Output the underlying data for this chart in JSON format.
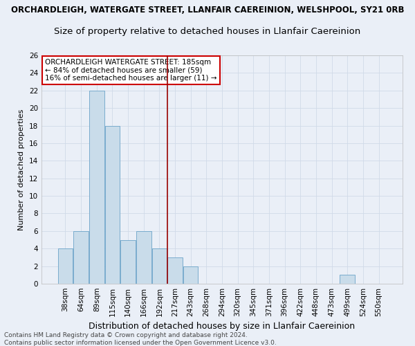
{
  "title": "ORCHARDLEIGH, WATERGATE STREET, LLANFAIR CAEREINION, WELSHPOOL, SY21 0RB",
  "subtitle": "Size of property relative to detached houses in Llanfair Caereinion",
  "xlabel": "Distribution of detached houses by size in Llanfair Caereinion",
  "ylabel": "Number of detached properties",
  "categories": [
    "38sqm",
    "64sqm",
    "89sqm",
    "115sqm",
    "140sqm",
    "166sqm",
    "192sqm",
    "217sqm",
    "243sqm",
    "268sqm",
    "294sqm",
    "320sqm",
    "345sqm",
    "371sqm",
    "396sqm",
    "422sqm",
    "448sqm",
    "473sqm",
    "499sqm",
    "524sqm",
    "550sqm"
  ],
  "values": [
    4,
    6,
    22,
    18,
    5,
    6,
    4,
    3,
    2,
    0,
    0,
    0,
    0,
    0,
    0,
    0,
    0,
    0,
    1,
    0,
    0
  ],
  "bar_color": "#c9dcea",
  "bar_edge_color": "#6aa3c8",
  "red_line_x": 6.5,
  "red_line_color": "#990000",
  "annotation_line1": "ORCHARDLEIGH WATERGATE STREET: 185sqm",
  "annotation_line2": "← 84% of detached houses are smaller (59)",
  "annotation_line3": "16% of semi-detached houses are larger (11) →",
  "annotation_box_facecolor": "#ffffff",
  "annotation_box_edgecolor": "#cc0000",
  "ylim": [
    0,
    26
  ],
  "yticks": [
    0,
    2,
    4,
    6,
    8,
    10,
    12,
    14,
    16,
    18,
    20,
    22,
    24,
    26
  ],
  "grid_color": "#d0dae8",
  "background_color": "#eaeff7",
  "title_bg_color": "#ffffff",
  "footer_line1": "Contains HM Land Registry data © Crown copyright and database right 2024.",
  "footer_line2": "Contains public sector information licensed under the Open Government Licence v3.0.",
  "title_fontsize": 8.5,
  "subtitle_fontsize": 9.5,
  "xlabel_fontsize": 9,
  "ylabel_fontsize": 8,
  "tick_fontsize": 7.5,
  "annotation_fontsize": 7.5,
  "footer_fontsize": 6.5
}
